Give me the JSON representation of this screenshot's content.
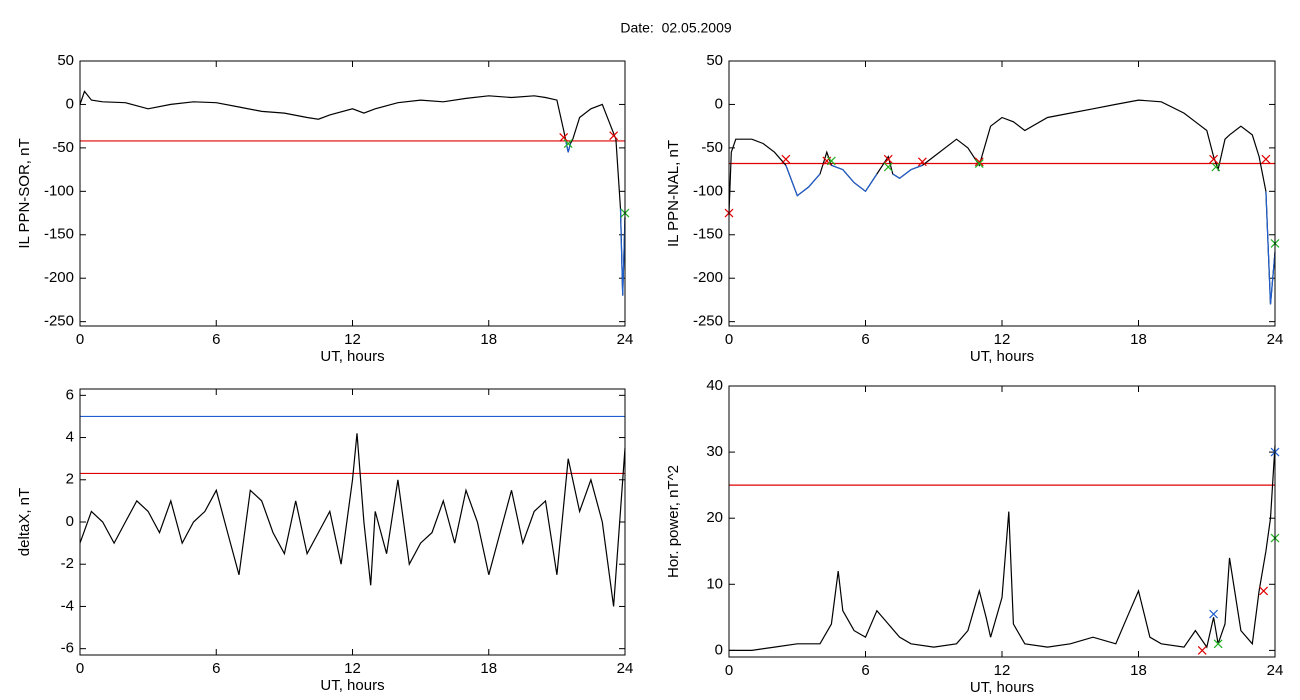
{
  "page_title": "Date:  02.05.2009",
  "chart_data": [
    {
      "type": "line",
      "xlabel": "UT, hours",
      "ylabel": "IL PPN-SOR, nT",
      "xlim": [
        0,
        24
      ],
      "xticks": [
        0,
        6,
        12,
        18,
        24
      ],
      "ylim": [
        -255,
        50
      ],
      "yticks": [
        50,
        0,
        -50,
        -100,
        -150,
        -200,
        -250
      ],
      "x": [
        0,
        0.2,
        0.5,
        1,
        2,
        3,
        4,
        5,
        6,
        7,
        8,
        9,
        10,
        10.5,
        11,
        12,
        12.5,
        13,
        14,
        15,
        16,
        17,
        18,
        19,
        20,
        20.5,
        21,
        21.3,
        21.4,
        21.5,
        21.6,
        21.7,
        22,
        22.5,
        23,
        23.3,
        23.6,
        23.8,
        23.9,
        24
      ],
      "series": [
        {
          "color": "#000000",
          "values": [
            0,
            15,
            5,
            3,
            2,
            -5,
            0,
            3,
            2,
            -3,
            -8,
            -10,
            -15,
            -17,
            -12,
            -5,
            -10,
            -5,
            2,
            5,
            3,
            7,
            10,
            8,
            10,
            8,
            5,
            -30,
            -43,
            -55,
            -45,
            -40,
            -15,
            -5,
            0,
            -20,
            -40,
            -120,
            -220,
            -130
          ]
        },
        {
          "color": "#1f5fd0",
          "values": [
            null,
            null,
            null,
            null,
            null,
            null,
            null,
            null,
            null,
            null,
            null,
            null,
            null,
            null,
            null,
            null,
            null,
            null,
            null,
            null,
            null,
            null,
            null,
            null,
            null,
            null,
            null,
            null,
            -43,
            -55,
            -45,
            null,
            null,
            null,
            null,
            null,
            null,
            -120,
            -220,
            -130
          ]
        }
      ],
      "hlines": [
        {
          "value": -42,
          "color": "#e00000"
        }
      ],
      "markers": [
        {
          "x": 21.3,
          "y": -38,
          "color": "#e00000"
        },
        {
          "x": 23.5,
          "y": -36,
          "color": "#e00000"
        },
        {
          "x": 21.5,
          "y": -45,
          "color": "#20b020"
        },
        {
          "x": 24,
          "y": -125,
          "color": "#20b020"
        }
      ]
    },
    {
      "type": "line",
      "xlabel": "UT, hours",
      "ylabel": "IL PPN-NAL, nT",
      "xlim": [
        0,
        24
      ],
      "xticks": [
        0,
        6,
        12,
        18,
        24
      ],
      "ylim": [
        -255,
        50
      ],
      "yticks": [
        50,
        0,
        -50,
        -100,
        -150,
        -200,
        -250
      ],
      "x": [
        0,
        0.1,
        0.3,
        1,
        1.5,
        2,
        2.5,
        3,
        3.5,
        4,
        4.3,
        4.5,
        5,
        5.5,
        6,
        6.5,
        7,
        7.2,
        7.5,
        8,
        8.5,
        9,
        10,
        10.5,
        11,
        11.5,
        12,
        12.5,
        13,
        14,
        15,
        16,
        17,
        18,
        19,
        20,
        20.5,
        21,
        21.3,
        21.5,
        21.8,
        22,
        22.5,
        23,
        23.3,
        23.6,
        23.8,
        24
      ],
      "series": [
        {
          "color": "#000000",
          "values": [
            -125,
            -55,
            -40,
            -40,
            -45,
            -55,
            -70,
            -105,
            -95,
            -80,
            -55,
            -70,
            -75,
            -90,
            -100,
            -80,
            -60,
            -80,
            -85,
            -75,
            -70,
            -60,
            -40,
            -50,
            -70,
            -25,
            -15,
            -20,
            -30,
            -15,
            -10,
            -5,
            0,
            5,
            3,
            -10,
            -20,
            -30,
            -60,
            -75,
            -40,
            -35,
            -25,
            -35,
            -60,
            -100,
            -230,
            -170
          ]
        },
        {
          "color": "#1f5fd0",
          "values": [
            null,
            null,
            null,
            null,
            null,
            null,
            -70,
            -105,
            -95,
            -80,
            null,
            -70,
            -75,
            -90,
            -100,
            -80,
            null,
            -80,
            -85,
            -75,
            -70,
            null,
            null,
            null,
            null,
            null,
            null,
            null,
            null,
            null,
            null,
            null,
            null,
            null,
            null,
            null,
            null,
            null,
            null,
            null,
            null,
            null,
            null,
            null,
            null,
            -100,
            -230,
            -170
          ]
        }
      ],
      "hlines": [
        {
          "value": -68,
          "color": "#e00000"
        }
      ],
      "markers": [
        {
          "x": 0,
          "y": -125,
          "color": "#e00000"
        },
        {
          "x": 2.5,
          "y": -63,
          "color": "#e00000"
        },
        {
          "x": 4.3,
          "y": -65,
          "color": "#e00000"
        },
        {
          "x": 7,
          "y": -63,
          "color": "#e00000"
        },
        {
          "x": 8.5,
          "y": -66,
          "color": "#e00000"
        },
        {
          "x": 11,
          "y": -66,
          "color": "#e00000"
        },
        {
          "x": 21.3,
          "y": -63,
          "color": "#e00000"
        },
        {
          "x": 23.6,
          "y": -63,
          "color": "#e00000"
        },
        {
          "x": 4.5,
          "y": -65,
          "color": "#20b020"
        },
        {
          "x": 7,
          "y": -72,
          "color": "#20b020"
        },
        {
          "x": 11,
          "y": -68,
          "color": "#20b020"
        },
        {
          "x": 21.4,
          "y": -72,
          "color": "#20b020"
        },
        {
          "x": 24,
          "y": -160,
          "color": "#20b020"
        }
      ]
    },
    {
      "type": "line",
      "xlabel": "UT, hours",
      "ylabel": "deltaX, nT",
      "xlim": [
        0,
        24
      ],
      "xticks": [
        0,
        6,
        12,
        18,
        24
      ],
      "ylim": [
        -6.3,
        6.3
      ],
      "yticks": [
        6,
        4,
        2,
        0,
        -2,
        -4,
        -6
      ],
      "x": [
        0,
        0.5,
        1,
        1.5,
        2,
        2.5,
        3,
        3.5,
        4,
        4.5,
        5,
        5.5,
        6,
        6.5,
        7,
        7.5,
        8,
        8.5,
        9,
        9.5,
        10,
        10.5,
        11,
        11.5,
        12,
        12.2,
        12.5,
        12.8,
        13,
        13.5,
        14,
        14.5,
        15,
        15.5,
        16,
        16.5,
        17,
        17.5,
        18,
        18.5,
        19,
        19.5,
        20,
        20.5,
        21,
        21.5,
        22,
        22.5,
        23,
        23.5,
        24
      ],
      "series": [
        {
          "color": "#000000",
          "values": [
            -1,
            0.5,
            0,
            -1,
            0,
            1,
            0.5,
            -0.5,
            1,
            -1,
            0,
            0.5,
            1.5,
            -0.5,
            -2.5,
            1.5,
            1,
            -0.5,
            -1.5,
            1,
            -1.5,
            -0.5,
            0.5,
            -2,
            2,
            4.2,
            0,
            -3,
            0.5,
            -1.5,
            2,
            -2,
            -1,
            -0.5,
            1,
            -1,
            1.5,
            0,
            -2.5,
            -0.5,
            1.5,
            -1,
            0.5,
            1,
            -2.5,
            3,
            0.5,
            2,
            0,
            -4,
            3.5
          ]
        }
      ],
      "hlines": [
        {
          "value": 2.3,
          "color": "#e00000"
        },
        {
          "value": 5,
          "color": "#1f5fd0"
        }
      ],
      "markers": []
    },
    {
      "type": "line",
      "xlabel": "UT, hours",
      "ylabel": "Hor. power, nT^2",
      "xlim": [
        0,
        24
      ],
      "xticks": [
        0,
        6,
        12,
        18,
        24
      ],
      "ylim": [
        -1,
        40
      ],
      "yticks": [
        0,
        10,
        20,
        30,
        40
      ],
      "x": [
        0,
        1,
        2,
        3,
        4,
        4.5,
        4.8,
        5,
        5.5,
        6,
        6.5,
        7,
        7.5,
        8,
        9,
        10,
        10.5,
        11,
        11.3,
        11.5,
        12,
        12.3,
        12.5,
        13,
        14,
        15,
        16,
        17,
        17.5,
        18,
        18.5,
        19,
        20,
        20.5,
        21,
        21.3,
        21.5,
        21.8,
        22,
        22.5,
        23,
        23.3,
        23.6,
        23.8,
        24
      ],
      "series": [
        {
          "color": "#000000",
          "values": [
            0,
            0,
            0.5,
            1,
            1,
            4,
            12,
            6,
            3,
            2,
            6,
            4,
            2,
            1,
            0.5,
            1,
            3,
            9,
            5,
            2,
            8,
            21,
            4,
            1,
            0.5,
            1,
            2,
            1,
            5,
            9,
            2,
            1,
            0.5,
            3,
            0.5,
            5,
            1,
            4,
            14,
            3,
            1,
            9,
            15,
            20,
            31
          ]
        }
      ],
      "hlines": [
        {
          "value": 25,
          "color": "#e00000"
        }
      ],
      "markers": [
        {
          "x": 21.3,
          "y": 5.5,
          "color": "#1f5fd0"
        },
        {
          "x": 24,
          "y": 30,
          "color": "#1f5fd0"
        },
        {
          "x": 20.8,
          "y": 0,
          "color": "#e00000"
        },
        {
          "x": 23.5,
          "y": 9,
          "color": "#e00000"
        },
        {
          "x": 21.5,
          "y": 1,
          "color": "#20b020"
        },
        {
          "x": 24,
          "y": 17,
          "color": "#20b020"
        }
      ]
    }
  ]
}
